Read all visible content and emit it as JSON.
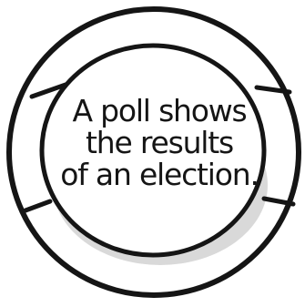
{
  "card": {
    "lines": [
      "A poll shows",
      "the results",
      "of an election."
    ]
  },
  "colors": {
    "background": "#ffffff",
    "ink": "#151515",
    "shadow": "#b9b9b9"
  }
}
